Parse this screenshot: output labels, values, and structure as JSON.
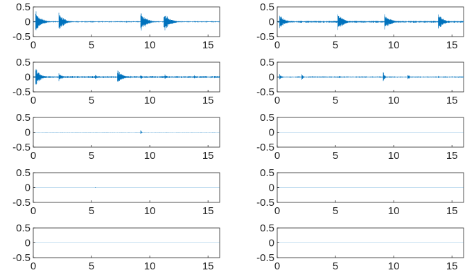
{
  "colors": {
    "series": "#0072bd",
    "axis": "#262626",
    "background": "#ffffff"
  },
  "chart_data": [
    {
      "type": "line",
      "title": "",
      "xlabel": "",
      "ylabel": "",
      "xlim": [
        0,
        16
      ],
      "ylim": [
        -0.5,
        0.5
      ],
      "xticks": [
        "0",
        "5",
        "10",
        "15"
      ],
      "yticks": [
        "0.5",
        "0",
        "-0.5"
      ],
      "grid": false,
      "series": [
        {
          "bursts": [
            {
              "t": 0.2,
              "amp": 0.42,
              "dur": 1.4
            },
            {
              "t": 2.2,
              "amp": 0.38,
              "dur": 1.3
            },
            {
              "t": 9.2,
              "amp": 0.42,
              "dur": 1.4
            },
            {
              "t": 11.2,
              "amp": 0.42,
              "dur": 1.4
            }
          ],
          "noise": 0.02
        }
      ]
    },
    {
      "type": "line",
      "title": "",
      "xlabel": "",
      "ylabel": "",
      "xlim": [
        0,
        16
      ],
      "ylim": [
        -0.5,
        0.5
      ],
      "xticks": [
        "0",
        "5",
        "10",
        "15"
      ],
      "yticks": [
        "0.5",
        "0",
        "-0.5"
      ],
      "grid": false,
      "series": [
        {
          "bursts": [
            {
              "t": 0.2,
              "amp": 0.3,
              "dur": 1.3
            },
            {
              "t": 5.2,
              "amp": 0.38,
              "dur": 1.3
            },
            {
              "t": 9.2,
              "amp": 0.35,
              "dur": 1.4
            },
            {
              "t": 13.8,
              "amp": 0.4,
              "dur": 1.2
            }
          ],
          "noise": 0.03
        }
      ]
    },
    {
      "type": "line",
      "title": "",
      "xlabel": "",
      "ylabel": "",
      "xlim": [
        0,
        16
      ],
      "ylim": [
        -0.5,
        0.5
      ],
      "xticks": [
        "0",
        "5",
        "10",
        "15"
      ],
      "yticks": [
        "0.5",
        "0",
        "-0.5"
      ],
      "grid": false,
      "series": [
        {
          "bursts": [
            {
              "t": 0.2,
              "amp": 0.38,
              "dur": 1.2
            },
            {
              "t": 2.2,
              "amp": 0.18,
              "dur": 0.8
            },
            {
              "t": 5.3,
              "amp": 0.1,
              "dur": 0.6
            },
            {
              "t": 7.2,
              "amp": 0.32,
              "dur": 1.2
            },
            {
              "t": 9.2,
              "amp": 0.12,
              "dur": 0.5
            },
            {
              "t": 11.3,
              "amp": 0.1,
              "dur": 0.6
            },
            {
              "t": 13.8,
              "amp": 0.08,
              "dur": 0.6
            }
          ],
          "noise": 0.03
        }
      ]
    },
    {
      "type": "line",
      "title": "",
      "xlabel": "",
      "ylabel": "",
      "xlim": [
        0,
        16
      ],
      "ylim": [
        -0.5,
        0.5
      ],
      "xticks": [
        "0",
        "5",
        "10",
        "15"
      ],
      "yticks": [
        "0.5",
        "0",
        "-0.5"
      ],
      "grid": false,
      "series": [
        {
          "bursts": [
            {
              "t": 0.2,
              "amp": 0.12,
              "dur": 0.6
            },
            {
              "t": 2.1,
              "amp": 0.14,
              "dur": 0.4
            },
            {
              "t": 5.3,
              "amp": 0.08,
              "dur": 0.4
            },
            {
              "t": 9.1,
              "amp": 0.2,
              "dur": 0.4
            },
            {
              "t": 11.2,
              "amp": 0.16,
              "dur": 0.4
            },
            {
              "t": 13.8,
              "amp": 0.06,
              "dur": 0.4
            }
          ],
          "noise": 0.02
        }
      ]
    },
    {
      "type": "line",
      "title": "",
      "xlabel": "",
      "ylabel": "",
      "xlim": [
        0,
        16
      ],
      "ylim": [
        -0.5,
        0.5
      ],
      "xticks": [
        "0",
        "5",
        "10",
        "15"
      ],
      "yticks": [
        "0.5",
        "0",
        "-0.5"
      ],
      "grid": false,
      "series": [
        {
          "bursts": [
            {
              "t": 9.2,
              "amp": 0.12,
              "dur": 0.2
            }
          ],
          "noise": 0.002
        }
      ]
    },
    {
      "type": "line",
      "title": "",
      "xlabel": "",
      "ylabel": "",
      "xlim": [
        0,
        16
      ],
      "ylim": [
        -0.5,
        0.5
      ],
      "xticks": [
        "0",
        "5",
        "10",
        "15"
      ],
      "yticks": [
        "0.5",
        "0",
        "-0.5"
      ],
      "grid": false,
      "series": [
        {
          "bursts": [],
          "noise": 0.001
        }
      ]
    },
    {
      "type": "line",
      "title": "",
      "xlabel": "",
      "ylabel": "",
      "xlim": [
        0,
        16
      ],
      "ylim": [
        -0.5,
        0.5
      ],
      "xticks": [
        "0",
        "5",
        "10",
        "15"
      ],
      "yticks": [
        "0.5",
        "0",
        "-0.5"
      ],
      "grid": false,
      "series": [
        {
          "bursts": [
            {
              "t": 5.3,
              "amp": 0.03,
              "dur": 0.1
            }
          ],
          "noise": 0.001
        }
      ]
    },
    {
      "type": "line",
      "title": "",
      "xlabel": "",
      "ylabel": "",
      "xlim": [
        0,
        16
      ],
      "ylim": [
        -0.5,
        0.5
      ],
      "xticks": [
        "0",
        "5",
        "10",
        "15"
      ],
      "yticks": [
        "0.5",
        "0",
        "-0.5"
      ],
      "grid": false,
      "series": [
        {
          "bursts": [],
          "noise": 0.001
        }
      ]
    },
    {
      "type": "line",
      "title": "",
      "xlabel": "",
      "ylabel": "",
      "xlim": [
        0,
        16
      ],
      "ylim": [
        -0.5,
        0.5
      ],
      "xticks": [
        "0",
        "5",
        "10",
        "15"
      ],
      "yticks": [
        "0.5",
        "0",
        "-0.5"
      ],
      "grid": false,
      "series": [
        {
          "bursts": [],
          "noise": 0.001
        }
      ]
    },
    {
      "type": "line",
      "title": "",
      "xlabel": "",
      "ylabel": "",
      "xlim": [
        0,
        16
      ],
      "ylim": [
        -0.5,
        0.5
      ],
      "xticks": [
        "0",
        "5",
        "10",
        "15"
      ],
      "yticks": [
        "0.5",
        "0",
        "-0.5"
      ],
      "grid": false,
      "series": [
        {
          "bursts": [],
          "noise": 0.001
        }
      ]
    }
  ]
}
